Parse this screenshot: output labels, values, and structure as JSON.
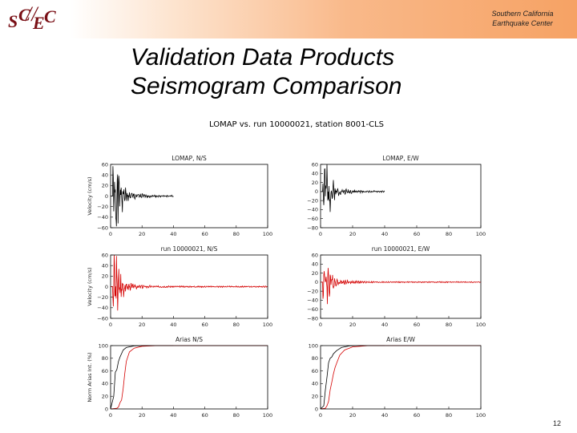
{
  "header": {
    "logo": {
      "s": "S",
      "c1": "C",
      "e": "E",
      "c2": "C",
      "slash": "//"
    },
    "org_line1": "Southern California",
    "org_line2": "Earthquake Center"
  },
  "slide": {
    "title_line1": "Validation Data Products",
    "title_line2": "Seismogram Comparison",
    "page_number": "12"
  },
  "colors": {
    "black": "#000000",
    "red": "#d40000",
    "accent": "#f6a264",
    "logo": "#7a1016"
  },
  "chart_data": {
    "suptitle": "LOMAP vs. run 10000021, station 8001-CLS",
    "panels": [
      {
        "type": "line",
        "title": "LOMAP, N/S",
        "ylabel": "Velocity (cm/s)",
        "xlim": [
          0,
          100
        ],
        "ylim": [
          -60,
          60
        ],
        "xticks": [
          "0",
          "20",
          "40",
          "60",
          "80",
          "100"
        ],
        "yticks": [
          "60",
          "40",
          "20",
          "0",
          "−20",
          "−40",
          "−60"
        ],
        "series": [
          {
            "color": "#000000",
            "x_end": 40,
            "kind": "velocity",
            "peak": 55,
            "seed": 1
          }
        ]
      },
      {
        "type": "line",
        "title": "LOMAP, E/W",
        "ylabel": "",
        "xlim": [
          0,
          100
        ],
        "ylim": [
          -80,
          60
        ],
        "xticks": [
          "0",
          "20",
          "40",
          "60",
          "80",
          "100"
        ],
        "yticks": [
          "60",
          "40",
          "20",
          "0",
          "−20",
          "−40",
          "−60",
          "−80"
        ],
        "series": [
          {
            "color": "#000000",
            "x_end": 40,
            "kind": "velocity",
            "peak": 48,
            "seed": 2
          }
        ]
      },
      {
        "type": "line",
        "title": "run 10000021, N/S",
        "ylabel": "Velocity (cm/s)",
        "xlim": [
          0,
          100
        ],
        "ylim": [
          -60,
          60
        ],
        "xticks": [
          "0",
          "20",
          "40",
          "60",
          "80",
          "100"
        ],
        "yticks": [
          "60",
          "40",
          "20",
          "0",
          "−20",
          "−40",
          "−60"
        ],
        "series": [
          {
            "color": "#d40000",
            "x_end": 100,
            "kind": "velocity",
            "peak": 42,
            "seed": 3
          }
        ]
      },
      {
        "type": "line",
        "title": "run 10000021, E/W",
        "ylabel": "",
        "xlim": [
          0,
          100
        ],
        "ylim": [
          -80,
          60
        ],
        "xticks": [
          "0",
          "20",
          "40",
          "60",
          "80",
          "100"
        ],
        "yticks": [
          "60",
          "40",
          "20",
          "0",
          "−20",
          "−40",
          "−60",
          "−80"
        ],
        "series": [
          {
            "color": "#d40000",
            "x_end": 100,
            "kind": "velocity",
            "peak": 35,
            "seed": 4
          }
        ]
      },
      {
        "type": "line",
        "title": "Arias N/S",
        "ylabel": "Norm Arias Int. (%)",
        "xlim": [
          0,
          100
        ],
        "ylim": [
          0,
          100
        ],
        "xticks": [
          "0",
          "20",
          "40",
          "60",
          "80",
          "100"
        ],
        "yticks": [
          "100",
          "80",
          "60",
          "40",
          "20",
          "0"
        ],
        "series": [
          {
            "color": "#000000",
            "kind": "arias",
            "points": [
              [
                0,
                0
              ],
              [
                2,
                20
              ],
              [
                3,
                58
              ],
              [
                4,
                62
              ],
              [
                5,
                75
              ],
              [
                6,
                82
              ],
              [
                8,
                93
              ],
              [
                10,
                97
              ],
              [
                15,
                99.5
              ],
              [
                25,
                100
              ],
              [
                40,
                100
              ]
            ]
          },
          {
            "color": "#d40000",
            "kind": "arias",
            "points": [
              [
                0,
                0
              ],
              [
                4,
                1
              ],
              [
                5,
                3
              ],
              [
                6,
                10
              ],
              [
                7,
                14
              ],
              [
                8,
                32
              ],
              [
                9,
                55
              ],
              [
                10,
                75
              ],
              [
                12,
                90
              ],
              [
                15,
                96
              ],
              [
                20,
                99
              ],
              [
                30,
                100
              ],
              [
                100,
                100
              ]
            ]
          }
        ]
      },
      {
        "type": "line",
        "title": "Arias E/W",
        "ylabel": "",
        "xlim": [
          0,
          100
        ],
        "ylim": [
          0,
          100
        ],
        "xticks": [
          "0",
          "20",
          "40",
          "60",
          "80",
          "100"
        ],
        "yticks": [
          "100",
          "80",
          "60",
          "40",
          "20",
          "0"
        ],
        "series": [
          {
            "color": "#000000",
            "kind": "arias",
            "points": [
              [
                0,
                0
              ],
              [
                2,
                5
              ],
              [
                3,
                30
              ],
              [
                4,
                50
              ],
              [
                5,
                73
              ],
              [
                6,
                80
              ],
              [
                7,
                82
              ],
              [
                8,
                87
              ],
              [
                10,
                92
              ],
              [
                13,
                97
              ],
              [
                18,
                99.5
              ],
              [
                25,
                100
              ],
              [
                40,
                100
              ]
            ]
          },
          {
            "color": "#d40000",
            "kind": "arias",
            "points": [
              [
                0,
                0
              ],
              [
                3,
                1
              ],
              [
                4,
                5
              ],
              [
                5,
                12
              ],
              [
                6,
                30
              ],
              [
                7,
                42
              ],
              [
                8,
                55
              ],
              [
                9,
                65
              ],
              [
                10,
                72
              ],
              [
                12,
                85
              ],
              [
                15,
                93
              ],
              [
                20,
                98
              ],
              [
                30,
                100
              ],
              [
                100,
                100
              ]
            ]
          }
        ]
      }
    ]
  }
}
